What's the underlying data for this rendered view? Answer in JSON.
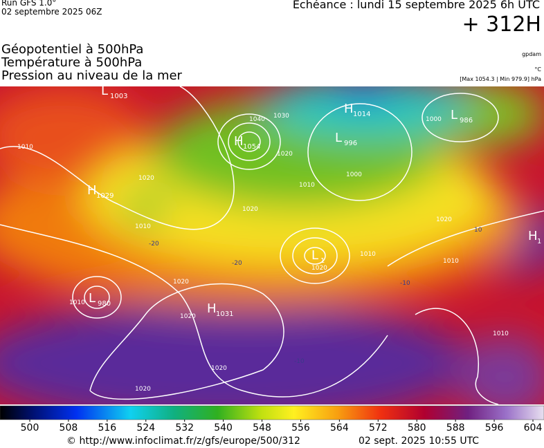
{
  "header": {
    "run": "Run GFS 1.0°",
    "run_date": "02 septembre 2025 06Z",
    "valid": "Echéance : lundi 15 septembre 2025 6h UTC",
    "step": "+ 312H",
    "fields": [
      "Géopotentiel à 500hPa",
      "Température à 500hPa",
      "Pression au niveau de la mer"
    ],
    "units": [
      "gpdam",
      "°C",
      "[Max 1054.3 | Min 979.9] hPa"
    ]
  },
  "map": {
    "centers": [
      {
        "type": "L",
        "pressure": 1003
      },
      {
        "type": "H",
        "pressure": 1054
      },
      {
        "type": "H",
        "pressure": 1014
      },
      {
        "type": "L",
        "pressure": 996
      },
      {
        "type": "L",
        "pressure": 986
      },
      {
        "type": "H",
        "pressure": 1029
      },
      {
        "type": "L",
        "pressure": 980
      },
      {
        "type": "H",
        "pressure": 1031
      },
      {
        "type": "L",
        "pressure": 1
      },
      {
        "type": "H",
        "pressure": 1
      }
    ],
    "isobars": [
      1010,
      1040,
      1030,
      1020,
      1000,
      1010,
      1000,
      1020,
      1010,
      1020,
      1020,
      1010,
      1020,
      1020,
      1010,
      1010,
      1020,
      1020,
      1010,
      1020
    ],
    "temperatures": [
      -20,
      -20,
      -10,
      10,
      -10
    ]
  },
  "legend": {
    "ticks": [
      500,
      508,
      516,
      524,
      532,
      540,
      548,
      556,
      564,
      572,
      580,
      588,
      596,
      604
    ]
  },
  "footer": {
    "source": "© http://www.infoclimat.fr/z/gfs/europe/500/312",
    "generated": "02 sept. 2025 10:55 UTC"
  }
}
